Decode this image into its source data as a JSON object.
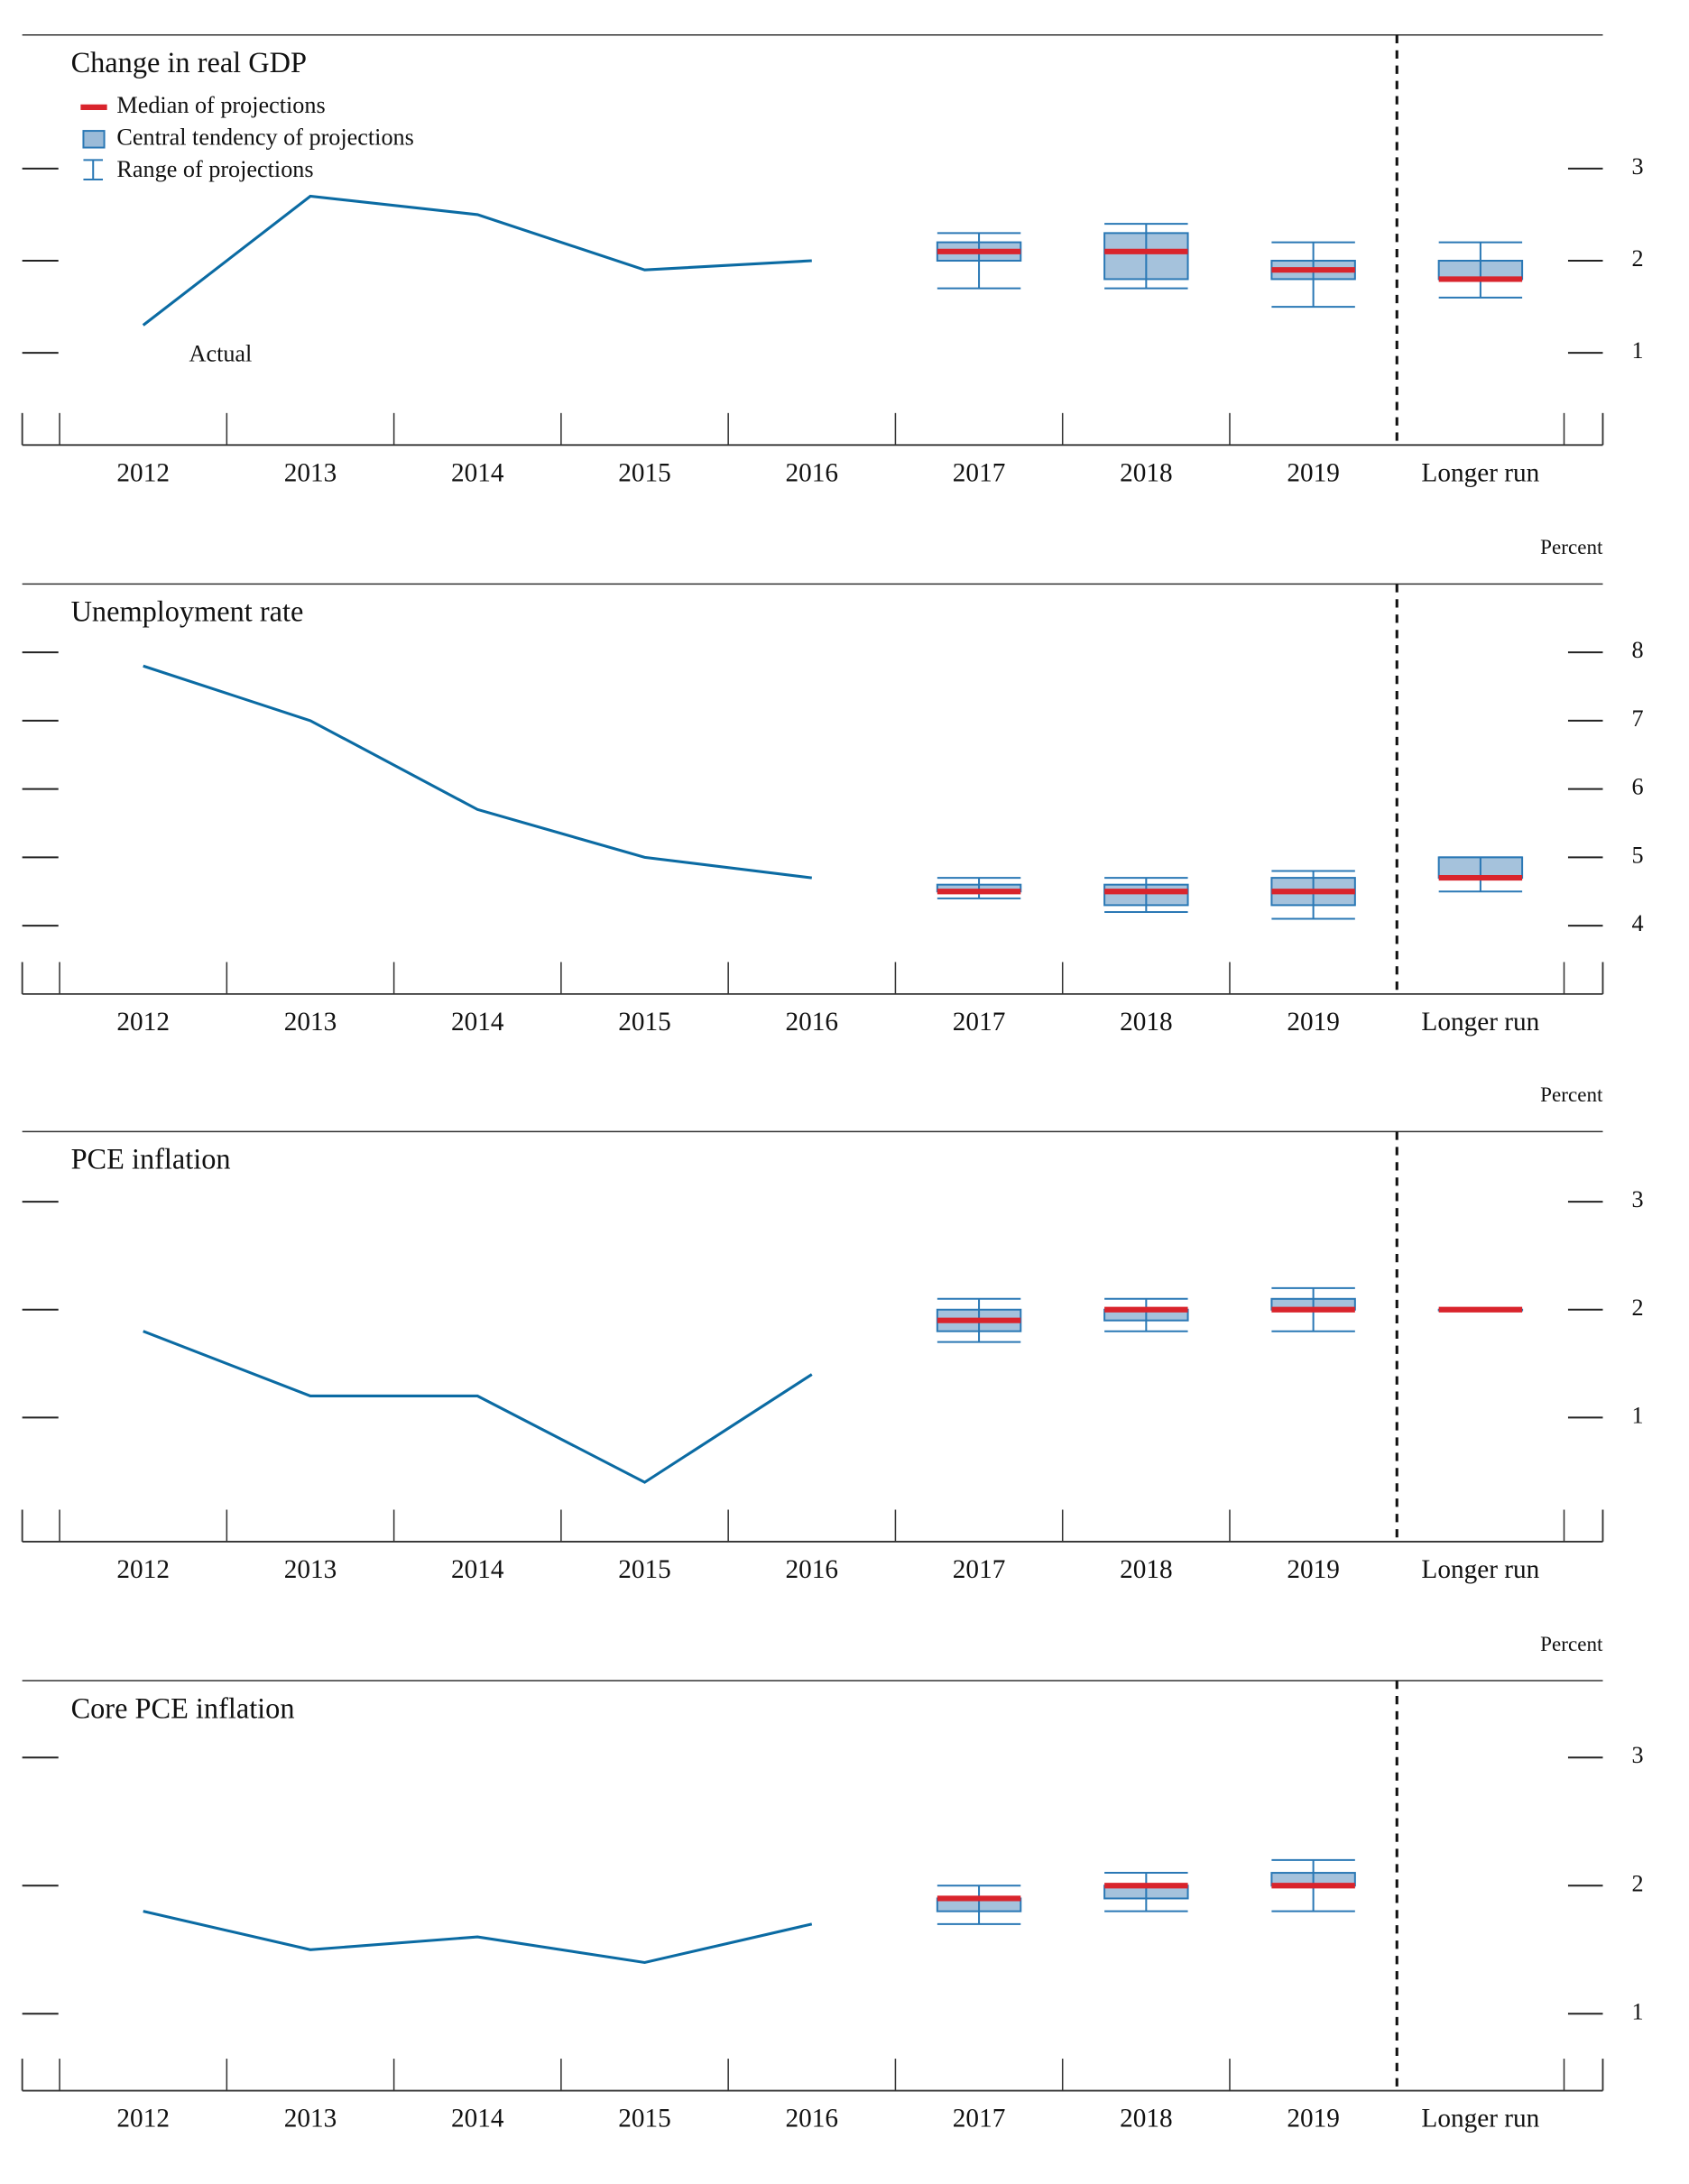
{
  "chart_data": [
    {
      "type": "box",
      "title": "Change in real GDP",
      "categories": [
        "2012",
        "2013",
        "2014",
        "2015",
        "2016",
        "2017",
        "2018",
        "2019",
        "Longer run"
      ],
      "annotation": "Actual",
      "legend": {
        "median": "Median of projections",
        "central_tendency": "Central tendency of projections",
        "range": "Range of projections"
      },
      "actual": [
        1.3,
        2.7,
        2.5,
        1.9,
        2.0,
        null,
        null,
        null,
        null
      ],
      "median": [
        null,
        null,
        null,
        null,
        null,
        2.1,
        2.1,
        1.9,
        1.8
      ],
      "central_tendency": [
        null,
        null,
        null,
        null,
        null,
        [
          2.0,
          2.2
        ],
        [
          1.8,
          2.3
        ],
        [
          1.8,
          2.0
        ],
        [
          1.8,
          2.0
        ]
      ],
      "range": [
        null,
        null,
        null,
        null,
        null,
        [
          1.7,
          2.3
        ],
        [
          1.7,
          2.4
        ],
        [
          1.5,
          2.2
        ],
        [
          1.6,
          2.2
        ]
      ],
      "ylim": [
        0,
        4.45
      ],
      "yticks": [
        1,
        2,
        3
      ],
      "colors": {
        "actual": "#0b6ba3",
        "median": "#d9242c",
        "box": "#9bbbd8",
        "box_edge": "#2a78b5"
      }
    },
    {
      "type": "box",
      "title": "Unemployment rate",
      "y_label": "Percent",
      "categories": [
        "2012",
        "2013",
        "2014",
        "2015",
        "2016",
        "2017",
        "2018",
        "2019",
        "Longer run"
      ],
      "actual": [
        7.8,
        7.0,
        5.7,
        5.0,
        4.7,
        null,
        null,
        null,
        null
      ],
      "median": [
        null,
        null,
        null,
        null,
        null,
        4.5,
        4.5,
        4.5,
        4.7
      ],
      "central_tendency": [
        null,
        null,
        null,
        null,
        null,
        [
          4.5,
          4.6
        ],
        [
          4.3,
          4.6
        ],
        [
          4.3,
          4.7
        ],
        [
          4.7,
          5.0
        ]
      ],
      "range": [
        null,
        null,
        null,
        null,
        null,
        [
          4.4,
          4.7
        ],
        [
          4.2,
          4.7
        ],
        [
          4.1,
          4.8
        ],
        [
          4.5,
          5.0
        ]
      ],
      "ylim": [
        3,
        9
      ],
      "yticks": [
        4,
        5,
        6,
        7,
        8
      ],
      "colors": {
        "actual": "#0b6ba3",
        "median": "#d9242c",
        "box": "#9bbbd8",
        "box_edge": "#2a78b5"
      }
    },
    {
      "type": "box",
      "title": "PCE inflation",
      "y_label": "Percent",
      "categories": [
        "2012",
        "2013",
        "2014",
        "2015",
        "2016",
        "2017",
        "2018",
        "2019",
        "Longer run"
      ],
      "actual": [
        1.8,
        1.2,
        1.2,
        0.4,
        1.4,
        null,
        null,
        null,
        null
      ],
      "median": [
        null,
        null,
        null,
        null,
        null,
        1.9,
        2.0,
        2.0,
        2.0
      ],
      "central_tendency": [
        null,
        null,
        null,
        null,
        null,
        [
          1.8,
          2.0
        ],
        [
          1.9,
          2.0
        ],
        [
          2.0,
          2.1
        ],
        [
          2.0,
          2.0
        ]
      ],
      "range": [
        null,
        null,
        null,
        null,
        null,
        [
          1.7,
          2.1
        ],
        [
          1.8,
          2.1
        ],
        [
          1.8,
          2.2
        ],
        [
          2.0,
          2.0
        ]
      ],
      "ylim": [
        -0.15,
        3.65
      ],
      "yticks": [
        1,
        2,
        3
      ],
      "colors": {
        "actual": "#0b6ba3",
        "median": "#d9242c",
        "box": "#9bbbd8",
        "box_edge": "#2a78b5"
      }
    },
    {
      "type": "box",
      "title": "Core PCE inflation",
      "y_label": "Percent",
      "categories": [
        "2012",
        "2013",
        "2014",
        "2015",
        "2016",
        "2017",
        "2018",
        "2019",
        "Longer run"
      ],
      "actual": [
        1.8,
        1.5,
        1.6,
        1.4,
        1.7,
        null,
        null,
        null,
        null
      ],
      "median": [
        null,
        null,
        null,
        null,
        null,
        1.9,
        2.0,
        2.0,
        null
      ],
      "central_tendency": [
        null,
        null,
        null,
        null,
        null,
        [
          1.8,
          1.9
        ],
        [
          1.9,
          2.0
        ],
        [
          2.0,
          2.1
        ],
        null
      ],
      "range": [
        null,
        null,
        null,
        null,
        null,
        [
          1.7,
          2.0
        ],
        [
          1.8,
          2.1
        ],
        [
          1.8,
          2.2
        ],
        null
      ],
      "ylim": [
        0.4,
        3.6
      ],
      "yticks": [
        1,
        2,
        3
      ],
      "colors": {
        "actual": "#0b6ba3",
        "median": "#d9242c",
        "box": "#9bbbd8",
        "box_edge": "#2a78b5"
      }
    }
  ]
}
